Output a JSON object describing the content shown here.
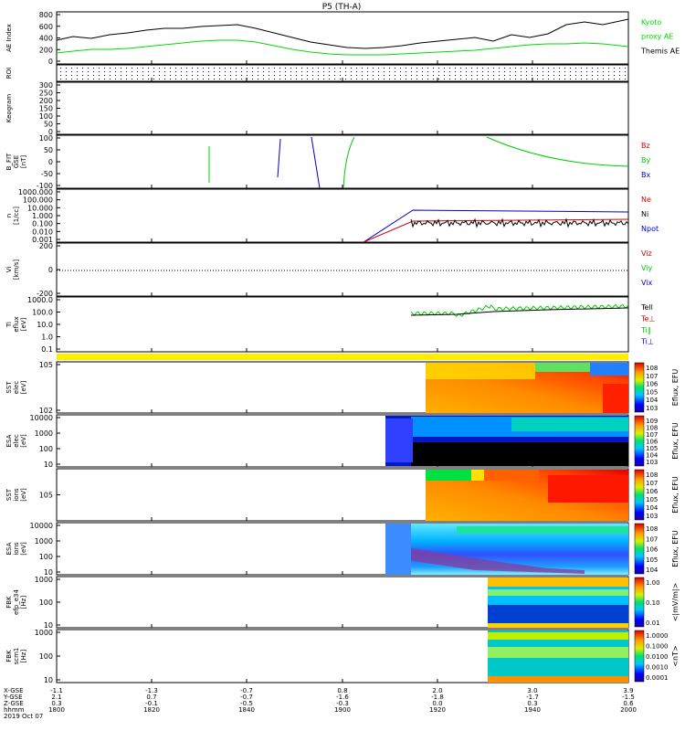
{
  "title": "P5 (TH-A)",
  "time_axis": {
    "ticks": [
      "1800",
      "1820",
      "1840",
      "1900",
      "1920",
      "1940",
      "2000"
    ],
    "rows": [
      {
        "label": "X-GSE",
        "values": [
          "-1.1",
          "-1.3",
          "-0.7",
          "0.8",
          "2.0",
          "3.0",
          "3.9"
        ]
      },
      {
        "label": "Y-GSE",
        "values": [
          "2.1",
          "0.7",
          "-0.7",
          "-1.6",
          "-1.8",
          "-1.7",
          "-1.5"
        ]
      },
      {
        "label": "Z-GSE",
        "values": [
          "0.3",
          "-0.1",
          "-0.5",
          "-0.3",
          "0.0",
          "0.3",
          "0.6"
        ]
      },
      {
        "label": "hhmm",
        "values": [
          "1800",
          "1820",
          "1840",
          "1900",
          "1920",
          "1940",
          "2000"
        ]
      }
    ],
    "date": "2019 Oct 07"
  },
  "panels": {
    "ae": {
      "ylabel": "AE Index",
      "ticks": [
        "800",
        "600",
        "400",
        "200",
        "0"
      ],
      "legend": [
        {
          "text": "Kyoto",
          "color": "#00dd00"
        },
        {
          "text": "proxy AE",
          "color": "#00dd00"
        },
        {
          "text": "Themis AE",
          "color": "#000000"
        }
      ]
    },
    "roi": {
      "ylabel": "ROI"
    },
    "keogram": {
      "ylabel": "Keogram",
      "ticks": [
        "300",
        "250",
        "200",
        "150",
        "100",
        "50",
        "0"
      ]
    },
    "bfit": {
      "ylabel": [
        "B_FIT",
        "GSE",
        "[nT]"
      ],
      "ticks": [
        "100",
        "50",
        "0",
        "-50",
        "-100"
      ],
      "legend": [
        {
          "text": "Bz",
          "color": "#cc0000"
        },
        {
          "text": "By",
          "color": "#00cc00"
        },
        {
          "text": "Bx",
          "color": "#0000cc"
        }
      ]
    },
    "dens": {
      "ylabel": [
        "n",
        "[1/cc]"
      ],
      "ticks": [
        "1000.000",
        "100.000",
        "10.000",
        "1.000",
        "0.100",
        "0.010",
        "0.001"
      ],
      "legend": [
        {
          "text": "Ne",
          "color": "#cc0000"
        },
        {
          "text": "Ni",
          "color": "#000000"
        },
        {
          "text": "Npot",
          "color": "#0000cc"
        }
      ]
    },
    "vel": {
      "ylabel": [
        "Vi",
        "[km/s]"
      ],
      "ticks": [
        "200",
        "0",
        "-200"
      ],
      "legend": [
        {
          "text": "Viz",
          "color": "#cc0000"
        },
        {
          "text": "Viy",
          "color": "#00cc00"
        },
        {
          "text": "Vix",
          "color": "#0000cc"
        }
      ]
    },
    "temp": {
      "ylabel": [
        "Ti",
        "eflux",
        "[eV]"
      ],
      "ticks": [
        "1000.0",
        "100.0",
        "10.0",
        "1.0",
        "0.1"
      ],
      "legend": [
        {
          "text": "Tell",
          "color": "#000000"
        },
        {
          "text": "Te⊥",
          "color": "#cc0000"
        },
        {
          "text": "Ti∥",
          "color": "#00cc00"
        },
        {
          "text": "Ti⊥",
          "color": "#0000cc"
        }
      ]
    },
    "sst_e": {
      "ylabel": [
        "SST",
        "elec",
        "[eV]"
      ],
      "ticks": [
        "10^5",
        "10^2"
      ],
      "cbar_label": "Eflux, EFU",
      "cbar_ticks": [
        "10^8",
        "10^7",
        "10^6",
        "10^5",
        "10^4",
        "10^3"
      ]
    },
    "esa_e": {
      "ylabel": [
        "ESA",
        "elec",
        "[eV]"
      ],
      "ticks": [
        "10000",
        "1000",
        "100",
        "10"
      ],
      "cbar_label": "Eflux, EFU",
      "cbar_ticks": [
        "10^9",
        "10^8",
        "10^7",
        "10^6",
        "10^5",
        "10^4",
        "10^3"
      ]
    },
    "sst_i": {
      "ylabel": [
        "SST",
        "ions",
        "[eV]"
      ],
      "ticks": [
        "10^5"
      ],
      "cbar_label": "Eflux, EFU",
      "cbar_ticks": [
        "10^8",
        "10^7",
        "10^6",
        "10^5",
        "10^4",
        "10^3"
      ]
    },
    "esa_i": {
      "ylabel": [
        "ESA",
        "ions",
        "[eV]"
      ],
      "ticks": [
        "10000",
        "1000",
        "100",
        "10"
      ],
      "cbar_label": "Eflux, EFU",
      "cbar_ticks": [
        "10^8",
        "10^7",
        "10^6",
        "10^5",
        "10^4"
      ]
    },
    "fbk_e": {
      "ylabel": [
        "FBK",
        "efp_e34",
        "[Hz]"
      ],
      "ticks": [
        "1000",
        "100",
        "10"
      ],
      "cbar_label": "<|mV/m|>",
      "cbar_ticks": [
        "1.00",
        "0.10",
        "0.01"
      ]
    },
    "fbk_b": {
      "ylabel": [
        "FBK",
        "scm1",
        "[Hz]"
      ],
      "ticks": [
        "1000",
        "100",
        "10"
      ],
      "cbar_label": "<nT>",
      "cbar_ticks": [
        "1.0000",
        "0.1000",
        "0.0100",
        "0.0010",
        "0.0001"
      ]
    }
  },
  "chart_data": [
    {
      "type": "line",
      "title": "P5 (TH-A)",
      "ylabel": "AE Index",
      "ylim": [
        0,
        800
      ],
      "x": [
        "1800",
        "1820",
        "1840",
        "1900",
        "1920",
        "1940",
        "2000"
      ],
      "series": [
        {
          "name": "Themis AE",
          "color": "#000000",
          "values": [
            400,
            560,
            620,
            380,
            360,
            500,
            650
          ]
        },
        {
          "name": "Kyoto proxy AE",
          "color": "#00dd00",
          "values": [
            230,
            290,
            330,
            180,
            180,
            260,
            350
          ]
        }
      ]
    },
    {
      "type": "line",
      "ylabel": "B_FIT GSE [nT]",
      "ylim": [
        -100,
        100
      ],
      "series_names": [
        "Bz",
        "By",
        "Bx"
      ]
    },
    {
      "type": "line",
      "ylabel": "n [1/cc]",
      "scale": "log",
      "ylim": [
        0.001,
        1000
      ],
      "series_names": [
        "Ne",
        "Ni",
        "Npot"
      ]
    },
    {
      "type": "line",
      "ylabel": "Vi [km/s]",
      "ylim": [
        -200,
        200
      ],
      "series_names": [
        "Viz",
        "Viy",
        "Vix"
      ]
    },
    {
      "type": "line",
      "ylabel": "Ti eflux [eV]",
      "scale": "log",
      "ylim": [
        0.1,
        1000
      ],
      "series_names": [
        "Tell",
        "Te⊥",
        "Ti∥",
        "Ti⊥"
      ]
    },
    {
      "type": "heatmap",
      "ylabel": "SST elec [eV]"
    },
    {
      "type": "heatmap",
      "ylabel": "ESA elec [eV]"
    },
    {
      "type": "heatmap",
      "ylabel": "SST ions [eV]"
    },
    {
      "type": "heatmap",
      "ylabel": "ESA ions [eV]"
    },
    {
      "type": "heatmap",
      "ylabel": "FBK efp_e34 [Hz]"
    },
    {
      "type": "heatmap",
      "ylabel": "FBK scm1 [Hz]"
    }
  ]
}
